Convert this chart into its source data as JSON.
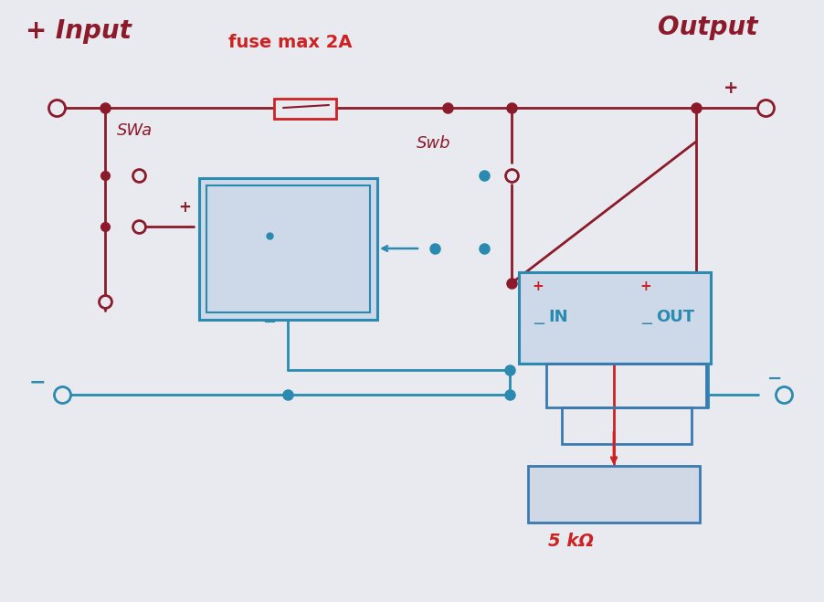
{
  "bg_color": "#d8dce6",
  "paper_color": "#e8eaf0",
  "red_color": "#8b1a2a",
  "blue_color": "#2a8ab0",
  "fuse_red": "#cc2222",
  "title_input": "+ Input",
  "title_output": "Output",
  "label_fuse": "fuse max 2A",
  "label_swa": "SWa",
  "label_swb": "Swb",
  "label_5k": "5 kΩ",
  "label_in": "IN",
  "label_out": "OUT"
}
